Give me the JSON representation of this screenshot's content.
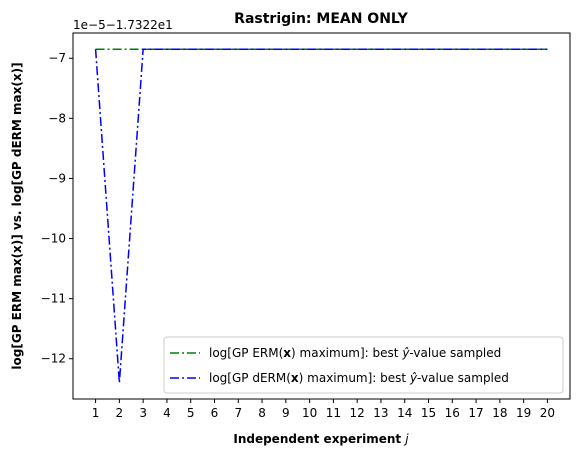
{
  "chart_data": {
    "type": "line",
    "title": "Rastrigin: MEAN ONLY",
    "xlabel_main": "Independent experiment ",
    "xlabel_var": "j",
    "ylabel": "log[GP ERM max(x)] vs. log[GP dERM max(x)]",
    "offset_label": "1e−5−1.7322e1",
    "x": [
      1,
      2,
      3,
      4,
      5,
      6,
      7,
      8,
      9,
      10,
      11,
      12,
      13,
      14,
      15,
      16,
      17,
      18,
      19,
      20
    ],
    "x_ticks": [
      "1",
      "2",
      "3",
      "4",
      "5",
      "6",
      "7",
      "8",
      "9",
      "10",
      "11",
      "12",
      "13",
      "14",
      "15",
      "16",
      "17",
      "18",
      "19",
      "20"
    ],
    "y_ticks": [
      -7,
      -8,
      -9,
      -10,
      -11,
      -12
    ],
    "y_tick_labels": [
      "−7",
      "−8",
      "−9",
      "−10",
      "−11",
      "−12"
    ],
    "xlim": [
      0.05,
      20.95
    ],
    "ylim": [
      -12.67,
      -6.58
    ],
    "grid": false,
    "legend_position": "lower-right",
    "series": [
      {
        "name": "log[GP ERM(x) maximum]: best ŷ-value sampled",
        "color": "#008000",
        "linestyle": "dashdot",
        "values": [
          -6.85,
          -6.85,
          -6.85,
          -6.85,
          -6.85,
          -6.85,
          -6.85,
          -6.85,
          -6.85,
          -6.85,
          -6.85,
          -6.85,
          -6.85,
          -6.85,
          -6.85,
          -6.85,
          -6.85,
          -6.85,
          -6.85,
          -6.85
        ]
      },
      {
        "name": "log[GP dERM(x) maximum]: best ŷ-value sampled",
        "color": "#0000ff",
        "linestyle": "dashdot",
        "values": [
          -6.85,
          -12.4,
          -6.85,
          -6.85,
          -6.85,
          -6.85,
          -6.85,
          -6.85,
          -6.85,
          -6.85,
          -6.85,
          -6.85,
          -6.85,
          -6.85,
          -6.85,
          -6.85,
          -6.85,
          -6.85,
          -6.85,
          -6.85
        ]
      }
    ],
    "legend": [
      {
        "pre": "log[GP ERM(",
        "bold": "x",
        "mid": ") maximum]: best ",
        "hat": "y",
        "post": "-value sampled",
        "color": "#008000"
      },
      {
        "pre": "log[GP dERM(",
        "bold": "x",
        "mid": ") maximum]: best ",
        "hat": "y",
        "post": "-value sampled",
        "color": "#0000ff"
      }
    ]
  }
}
